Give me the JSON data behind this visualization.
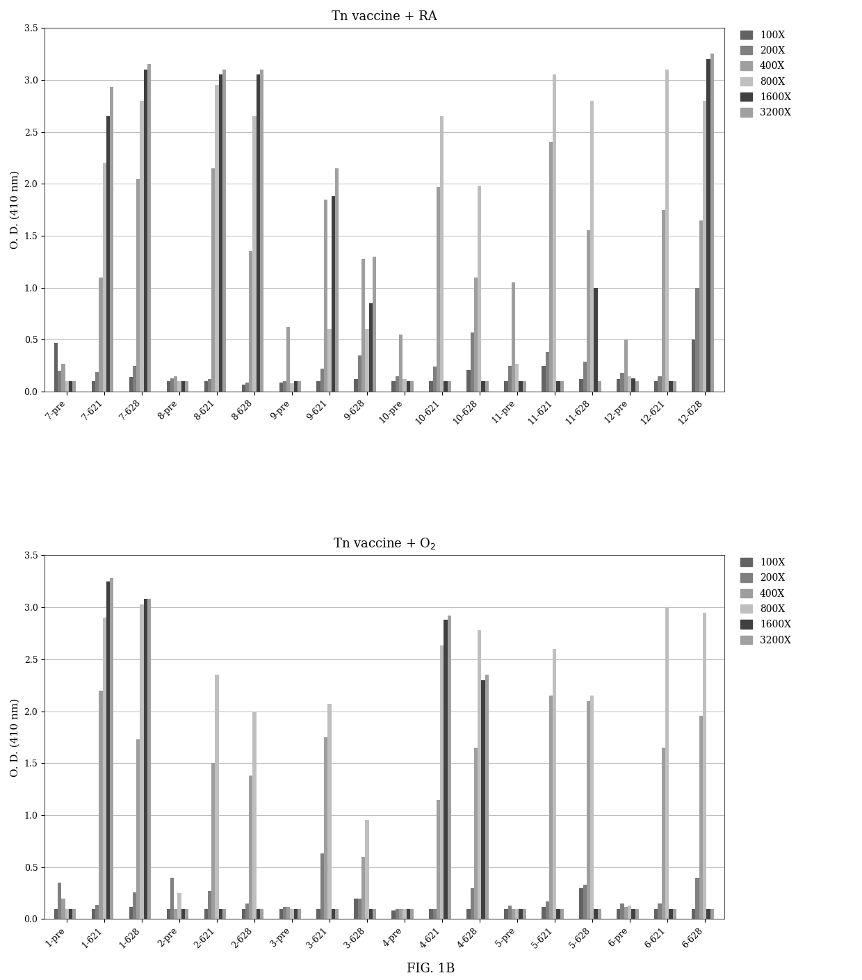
{
  "chart1": {
    "title": "Tn vaccine + RA",
    "categories": [
      "7-pre",
      "7-621",
      "7-628",
      "8-pre",
      "8-621",
      "8-628",
      "9-pre",
      "9-621",
      "9-628",
      "10-pre",
      "10-621",
      "10-628",
      "11-pre",
      "11-621",
      "11-628",
      "12-pre",
      "12-621",
      "12-628"
    ],
    "series": {
      "100X": [
        0.47,
        0.1,
        0.14,
        0.1,
        0.1,
        0.07,
        0.09,
        0.1,
        0.12,
        0.1,
        0.1,
        0.21,
        0.1,
        0.25,
        0.12,
        0.12,
        0.1,
        0.5
      ],
      "200X": [
        0.2,
        0.19,
        0.25,
        0.13,
        0.12,
        0.09,
        0.1,
        0.22,
        0.35,
        0.15,
        0.24,
        0.57,
        0.25,
        0.38,
        0.29,
        0.18,
        0.15,
        1.0
      ],
      "400X": [
        0.27,
        1.1,
        2.05,
        0.15,
        2.15,
        1.35,
        0.62,
        1.85,
        1.28,
        0.55,
        1.97,
        1.1,
        1.05,
        2.4,
        1.55,
        0.5,
        1.75,
        1.65
      ],
      "800X": [
        0.1,
        2.2,
        2.8,
        0.1,
        2.95,
        2.65,
        0.08,
        0.6,
        0.6,
        0.12,
        2.65,
        1.98,
        0.27,
        3.05,
        2.8,
        0.15,
        3.1,
        2.8
      ],
      "1600X": [
        0.1,
        2.65,
        3.1,
        0.1,
        3.05,
        3.05,
        0.1,
        1.88,
        0.85,
        0.1,
        0.1,
        0.1,
        0.1,
        0.1,
        1.0,
        0.13,
        0.1,
        3.2
      ],
      "3200X": [
        0.1,
        2.93,
        3.15,
        0.1,
        3.1,
        3.1,
        0.1,
        2.15,
        1.3,
        0.1,
        0.1,
        0.1,
        0.1,
        0.1,
        0.1,
        0.1,
        0.1,
        3.25
      ]
    }
  },
  "chart2": {
    "title": "Tn vaccine + O₂",
    "categories": [
      "1-pre",
      "1-621",
      "1-628",
      "2-pre",
      "2-621",
      "2-628",
      "3-pre",
      "3-621",
      "3-628",
      "4-pre",
      "4-621",
      "4-628",
      "5-pre",
      "5-621",
      "5-628",
      "6-pre",
      "6-621",
      "6-628"
    ],
    "series": {
      "100X": [
        0.1,
        0.1,
        0.12,
        0.1,
        0.1,
        0.1,
        0.1,
        0.1,
        0.2,
        0.08,
        0.1,
        0.1,
        0.1,
        0.12,
        0.3,
        0.1,
        0.1,
        0.1
      ],
      "200X": [
        0.35,
        0.14,
        0.26,
        0.4,
        0.27,
        0.15,
        0.12,
        0.63,
        0.2,
        0.1,
        0.1,
        0.3,
        0.13,
        0.17,
        0.33,
        0.15,
        0.15,
        0.4
      ],
      "400X": [
        0.2,
        2.2,
        1.73,
        0.1,
        1.5,
        1.38,
        0.12,
        1.75,
        0.6,
        0.1,
        1.15,
        1.65,
        0.1,
        2.15,
        2.1,
        0.12,
        1.65,
        1.96
      ],
      "800X": [
        0.1,
        2.9,
        3.03,
        0.25,
        2.35,
        2.0,
        0.1,
        2.07,
        0.95,
        0.1,
        2.63,
        2.78,
        0.1,
        2.6,
        2.15,
        0.13,
        3.0,
        2.95
      ],
      "1600X": [
        0.1,
        3.25,
        3.08,
        0.1,
        0.1,
        0.1,
        0.1,
        0.1,
        0.1,
        0.1,
        2.88,
        2.3,
        0.1,
        0.1,
        0.1,
        0.1,
        0.1,
        0.1
      ],
      "3200X": [
        0.1,
        3.28,
        3.08,
        0.1,
        0.1,
        0.1,
        0.1,
        0.1,
        0.1,
        0.1,
        2.92,
        2.35,
        0.1,
        0.1,
        0.1,
        0.1,
        0.1,
        0.1
      ]
    }
  },
  "series_names": [
    "100X",
    "200X",
    "400X",
    "800X",
    "1600X",
    "3200X"
  ],
  "bar_colors": [
    "#636363",
    "#7f7f7f",
    "#9e9e9e",
    "#bfbfbf",
    "#404040",
    "#a0a0a0"
  ],
  "ylabel": "O. D. (410 nm)",
  "ylim": [
    0,
    3.5
  ],
  "yticks": [
    0,
    0.5,
    1.0,
    1.5,
    2.0,
    2.5,
    3.0,
    3.5
  ],
  "fig_caption": "FIG. 1B",
  "background_color": "#ffffff"
}
